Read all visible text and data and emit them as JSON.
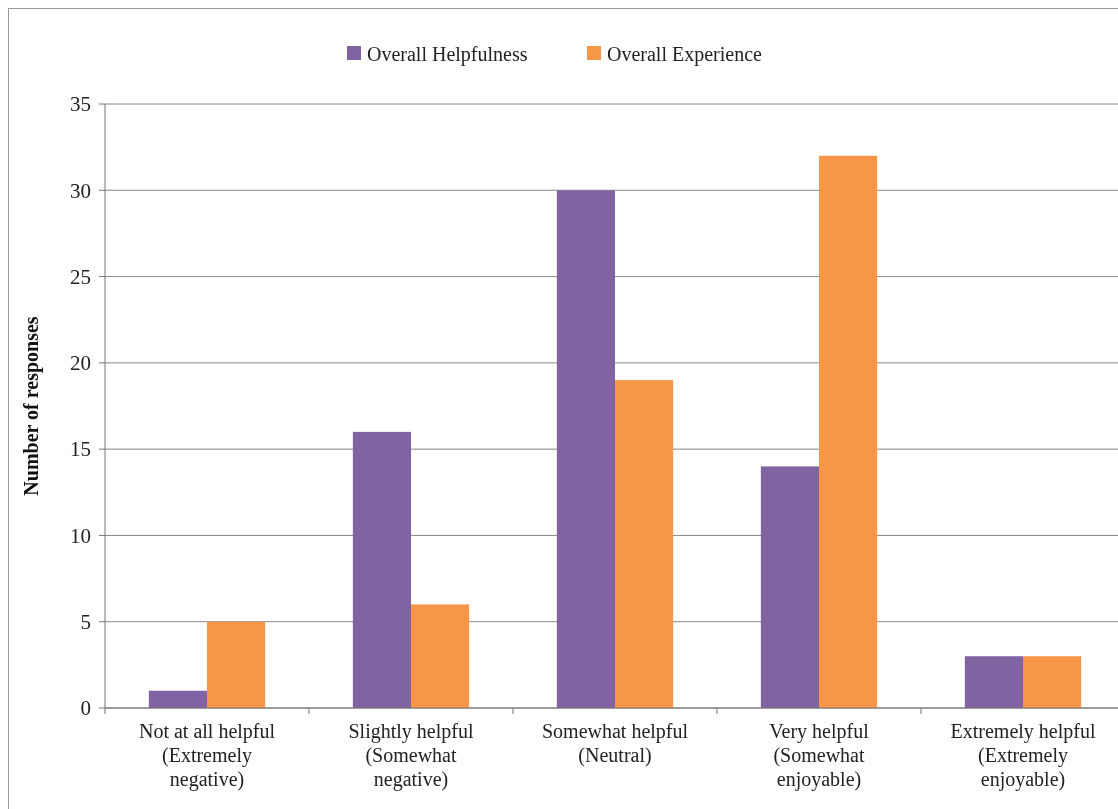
{
  "chart_data": {
    "type": "bar",
    "ylabel": "Number of responses",
    "categories": [
      "Not at all helpful (Extremely negative)",
      "Slightly helpful (Somewhat negative)",
      "Somewhat helpful (Neutral)",
      "Very helpful (Somewhat enjoyable)",
      "Extremely helpful (Extremely enjoyable)"
    ],
    "series": [
      {
        "name": "Overall Helpfulness",
        "color": "#8064a2",
        "values": [
          1,
          16,
          30,
          14,
          3
        ]
      },
      {
        "name": "Overall Experience",
        "color": "#f79646",
        "values": [
          5,
          6,
          19,
          32,
          3
        ]
      }
    ],
    "ylim": [
      0,
      35
    ],
    "yticks": [
      0,
      5,
      10,
      15,
      20,
      25,
      30,
      35
    ],
    "grid": "y",
    "legend": "top"
  }
}
